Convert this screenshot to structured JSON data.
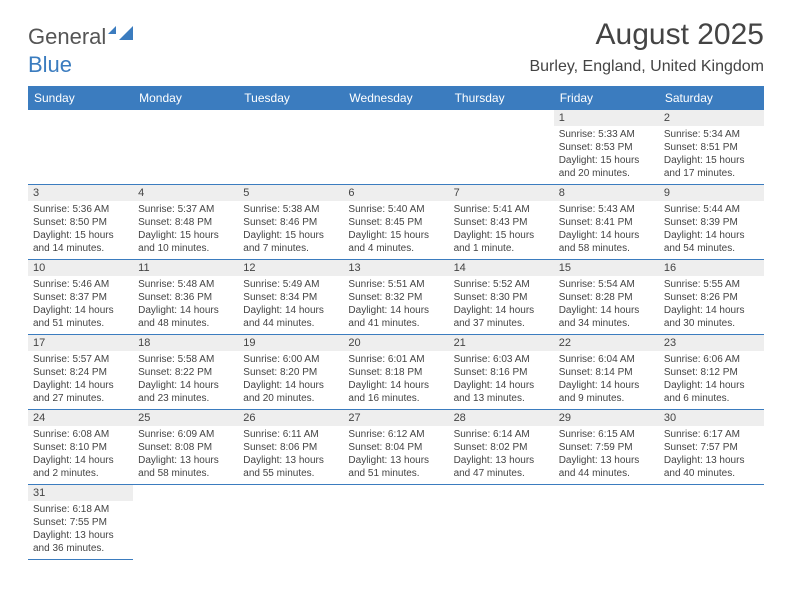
{
  "logo": {
    "part1": "General",
    "part2": "Blue"
  },
  "title": "August 2025",
  "location": "Burley, England, United Kingdom",
  "header_bg": "#3b7cbf",
  "day_headers": [
    "Sunday",
    "Monday",
    "Tuesday",
    "Wednesday",
    "Thursday",
    "Friday",
    "Saturday"
  ],
  "weeks": [
    [
      null,
      null,
      null,
      null,
      null,
      {
        "n": "1",
        "sr": "5:33 AM",
        "ss": "8:53 PM",
        "dl": "15 hours and 20 minutes."
      },
      {
        "n": "2",
        "sr": "5:34 AM",
        "ss": "8:51 PM",
        "dl": "15 hours and 17 minutes."
      }
    ],
    [
      {
        "n": "3",
        "sr": "5:36 AM",
        "ss": "8:50 PM",
        "dl": "15 hours and 14 minutes."
      },
      {
        "n": "4",
        "sr": "5:37 AM",
        "ss": "8:48 PM",
        "dl": "15 hours and 10 minutes."
      },
      {
        "n": "5",
        "sr": "5:38 AM",
        "ss": "8:46 PM",
        "dl": "15 hours and 7 minutes."
      },
      {
        "n": "6",
        "sr": "5:40 AM",
        "ss": "8:45 PM",
        "dl": "15 hours and 4 minutes."
      },
      {
        "n": "7",
        "sr": "5:41 AM",
        "ss": "8:43 PM",
        "dl": "15 hours and 1 minute."
      },
      {
        "n": "8",
        "sr": "5:43 AM",
        "ss": "8:41 PM",
        "dl": "14 hours and 58 minutes."
      },
      {
        "n": "9",
        "sr": "5:44 AM",
        "ss": "8:39 PM",
        "dl": "14 hours and 54 minutes."
      }
    ],
    [
      {
        "n": "10",
        "sr": "5:46 AM",
        "ss": "8:37 PM",
        "dl": "14 hours and 51 minutes."
      },
      {
        "n": "11",
        "sr": "5:48 AM",
        "ss": "8:36 PM",
        "dl": "14 hours and 48 minutes."
      },
      {
        "n": "12",
        "sr": "5:49 AM",
        "ss": "8:34 PM",
        "dl": "14 hours and 44 minutes."
      },
      {
        "n": "13",
        "sr": "5:51 AM",
        "ss": "8:32 PM",
        "dl": "14 hours and 41 minutes."
      },
      {
        "n": "14",
        "sr": "5:52 AM",
        "ss": "8:30 PM",
        "dl": "14 hours and 37 minutes."
      },
      {
        "n": "15",
        "sr": "5:54 AM",
        "ss": "8:28 PM",
        "dl": "14 hours and 34 minutes."
      },
      {
        "n": "16",
        "sr": "5:55 AM",
        "ss": "8:26 PM",
        "dl": "14 hours and 30 minutes."
      }
    ],
    [
      {
        "n": "17",
        "sr": "5:57 AM",
        "ss": "8:24 PM",
        "dl": "14 hours and 27 minutes."
      },
      {
        "n": "18",
        "sr": "5:58 AM",
        "ss": "8:22 PM",
        "dl": "14 hours and 23 minutes."
      },
      {
        "n": "19",
        "sr": "6:00 AM",
        "ss": "8:20 PM",
        "dl": "14 hours and 20 minutes."
      },
      {
        "n": "20",
        "sr": "6:01 AM",
        "ss": "8:18 PM",
        "dl": "14 hours and 16 minutes."
      },
      {
        "n": "21",
        "sr": "6:03 AM",
        "ss": "8:16 PM",
        "dl": "14 hours and 13 minutes."
      },
      {
        "n": "22",
        "sr": "6:04 AM",
        "ss": "8:14 PM",
        "dl": "14 hours and 9 minutes."
      },
      {
        "n": "23",
        "sr": "6:06 AM",
        "ss": "8:12 PM",
        "dl": "14 hours and 6 minutes."
      }
    ],
    [
      {
        "n": "24",
        "sr": "6:08 AM",
        "ss": "8:10 PM",
        "dl": "14 hours and 2 minutes."
      },
      {
        "n": "25",
        "sr": "6:09 AM",
        "ss": "8:08 PM",
        "dl": "13 hours and 58 minutes."
      },
      {
        "n": "26",
        "sr": "6:11 AM",
        "ss": "8:06 PM",
        "dl": "13 hours and 55 minutes."
      },
      {
        "n": "27",
        "sr": "6:12 AM",
        "ss": "8:04 PM",
        "dl": "13 hours and 51 minutes."
      },
      {
        "n": "28",
        "sr": "6:14 AM",
        "ss": "8:02 PM",
        "dl": "13 hours and 47 minutes."
      },
      {
        "n": "29",
        "sr": "6:15 AM",
        "ss": "7:59 PM",
        "dl": "13 hours and 44 minutes."
      },
      {
        "n": "30",
        "sr": "6:17 AM",
        "ss": "7:57 PM",
        "dl": "13 hours and 40 minutes."
      }
    ],
    [
      {
        "n": "31",
        "sr": "6:18 AM",
        "ss": "7:55 PM",
        "dl": "13 hours and 36 minutes."
      },
      null,
      null,
      null,
      null,
      null,
      null
    ]
  ],
  "labels": {
    "sunrise": "Sunrise: ",
    "sunset": "Sunset: ",
    "daylight": "Daylight: "
  }
}
